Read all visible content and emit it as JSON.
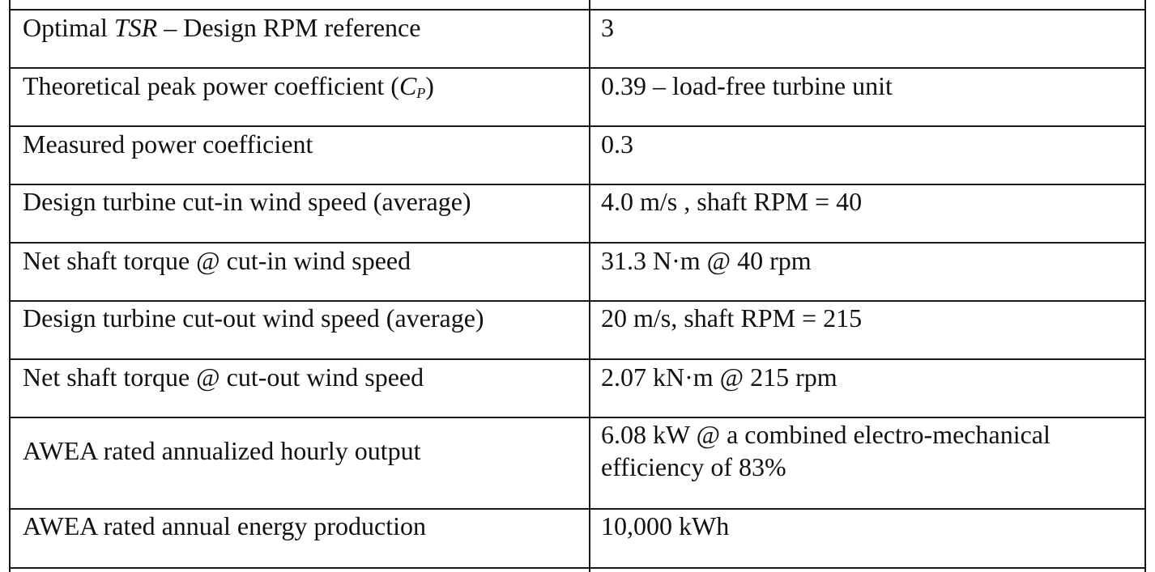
{
  "table": {
    "rows": [
      {
        "label_pre": "Optimal ",
        "label_math": "TSR",
        "label_post": " – Design RPM reference",
        "value": "3"
      },
      {
        "label_pre": "Theoretical peak power coefficient (",
        "label_math": "C",
        "label_sub": "P",
        "label_post": ")",
        "value": "0.39 – load-free turbine unit"
      },
      {
        "label": "Measured power coefficient",
        "value": "0.3"
      },
      {
        "label": "Design turbine cut-in wind speed (average)",
        "value": "4.0 m/s , shaft RPM = 40"
      },
      {
        "label": "Net shaft torque @ cut-in wind speed",
        "value": "31.3 N·m @ 40 rpm"
      },
      {
        "label": "Design turbine cut-out wind speed (average)",
        "value": "20 m/s, shaft RPM = 215"
      },
      {
        "label": "Net shaft torque @ cut-out wind speed",
        "value": "2.07 kN·m @ 215 rpm"
      },
      {
        "label": "AWEA rated annualized hourly output",
        "value": "6.08 kW @ a combined electro-mechanical efficiency of 83%"
      },
      {
        "label": "AWEA rated annual energy production",
        "value": "10,000 kWh"
      }
    ]
  }
}
